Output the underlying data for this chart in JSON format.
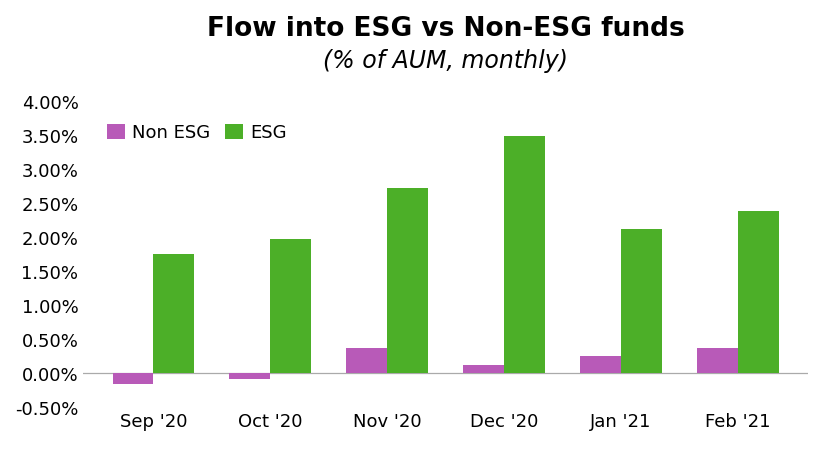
{
  "title_line1": "Flow into ESG vs Non-ESG funds",
  "title_line2": "(% of AUM, monthly)",
  "categories": [
    "Sep '20",
    "Oct '20",
    "Nov '20",
    "Dec '20",
    "Jan '21",
    "Feb '21"
  ],
  "non_esg": [
    -0.0015,
    -0.0008,
    0.0037,
    0.0012,
    0.0025,
    0.0037
  ],
  "esg": [
    0.0175,
    0.0198,
    0.0272,
    0.0348,
    0.0212,
    0.0238
  ],
  "color_non_esg": "#b85ab8",
  "color_esg": "#4caf28",
  "ylim": [
    -0.005,
    0.04
  ],
  "yticks": [
    -0.005,
    0.0,
    0.005,
    0.01,
    0.015,
    0.02,
    0.025,
    0.03,
    0.035,
    0.04
  ],
  "legend_labels": [
    "Non ESG",
    "ESG"
  ],
  "bar_width": 0.35,
  "background_color": "#ffffff",
  "title_fontsize": 19,
  "subtitle_fontsize": 17,
  "tick_fontsize": 13,
  "legend_fontsize": 13
}
